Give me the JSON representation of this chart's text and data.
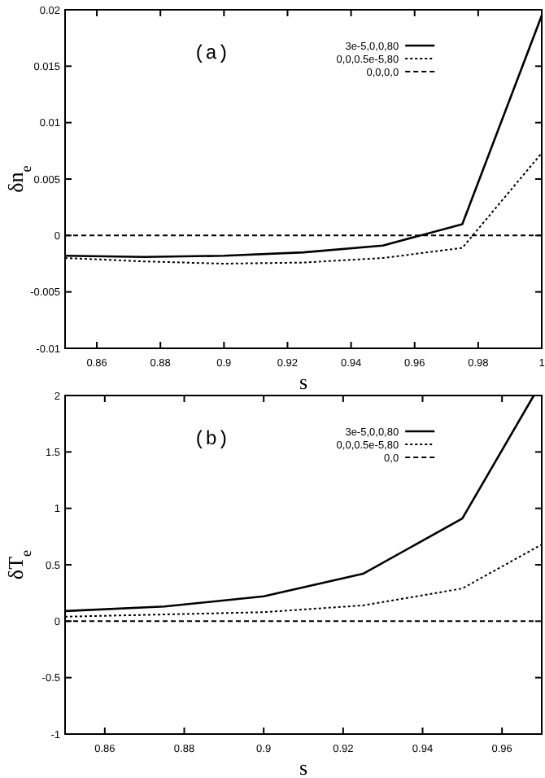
{
  "chart_data": [
    {
      "type": "line",
      "xlabel": "s",
      "ylabel": "δn$_{e}$",
      "annotations": [
        "(a)"
      ],
      "xlim": [
        0.85,
        1
      ],
      "ylim": [
        -0.01,
        0.02
      ],
      "xticks": [
        0.86,
        0.88,
        0.9,
        0.92,
        0.94,
        0.96,
        0.98,
        1
      ],
      "yticks": [
        -0.01,
        -0.005,
        0,
        0.005,
        0.01,
        0.015,
        0.02
      ],
      "legend": "top right",
      "grid": false,
      "marker": "none",
      "x": [
        0.85,
        0.875,
        0.9,
        0.925,
        0.95,
        0.975,
        1
      ],
      "series": [
        {
          "name": "3e-5,0,0,80",
          "color": "#000000",
          "line_style": "solid",
          "values": [
            -0.0018,
            -0.0019,
            -0.0018,
            -0.0015,
            -0.0009,
            0.001,
            0.0195
          ]
        },
        {
          "name": "0,0,0.5e-5,80",
          "color": "#000000",
          "line_style": "dotted",
          "values": [
            -0.002,
            -0.0023,
            -0.0025,
            -0.0024,
            -0.002,
            -0.0011,
            0.0073
          ]
        },
        {
          "name": "0,0,0,0",
          "color": "#000000",
          "line_style": "dashed",
          "values": [
            0,
            0,
            0,
            0,
            0,
            0,
            0
          ]
        }
      ]
    },
    {
      "type": "line",
      "xlabel": "s",
      "ylabel": "δT$_{e}$",
      "annotations": [
        "(b)"
      ],
      "xlim": [
        0.85,
        0.97
      ],
      "ylim": [
        -1,
        2
      ],
      "xticks": [
        0.86,
        0.88,
        0.9,
        0.92,
        0.94,
        0.96
      ],
      "yticks": [
        -1,
        -0.5,
        0,
        0.5,
        1,
        1.5,
        2
      ],
      "legend": "top right",
      "grid": false,
      "marker": "none",
      "x": [
        0.85,
        0.875,
        0.9,
        0.925,
        0.95,
        0.968
      ],
      "series": [
        {
          "name": "3e-5,0,0,80",
          "color": "#000000",
          "line_style": "solid",
          "values": [
            0.09,
            0.13,
            0.22,
            0.42,
            0.91,
            2.0
          ]
        },
        {
          "name": "0,0,0.5e-5,80",
          "color": "#000000",
          "line_style": "dotted",
          "x": [
            0.85,
            0.875,
            0.9,
            0.925,
            0.95,
            0.97
          ],
          "values": [
            0.04,
            0.06,
            0.08,
            0.14,
            0.29,
            0.68
          ]
        },
        {
          "name": "0,0",
          "color": "#000000",
          "line_style": "dashed",
          "values": [
            0,
            0,
            0,
            0,
            0,
            0
          ]
        }
      ]
    }
  ]
}
